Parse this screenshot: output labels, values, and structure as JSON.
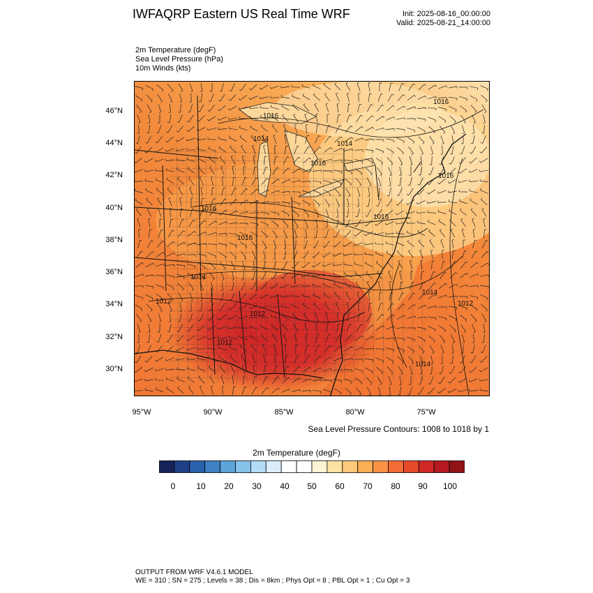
{
  "header": {
    "title": "IWFAQRP Eastern US Real Time WRF",
    "init": "Init: 2025-08-16_00:00:00",
    "valid": "Valid: 2025-08-21_14:00:00"
  },
  "variables": [
    "2m Temperature   (degF)",
    "Sea Level Pressure   (hPa)",
    "10m Winds   (kts)"
  ],
  "map": {
    "lat_labels": [
      "46°N",
      "44°N",
      "42°N",
      "40°N",
      "38°N",
      "36°N",
      "34°N",
      "32°N",
      "30°N"
    ],
    "lon_labels": [
      "95°W",
      "90°W",
      "85°W",
      "80°W",
      "75°W"
    ],
    "pressure_labels": [
      "1016",
      "1016",
      "1014",
      "1014",
      "1016",
      "1016",
      "1016",
      "1016",
      "1016",
      "1014",
      "1014",
      "1012",
      "1012",
      "1012",
      "1012",
      "1014"
    ],
    "colors": {
      "hot": "#d7302a",
      "warm": "#f07634",
      "mild": "#f79d46",
      "cool": "#fcc97a",
      "light": "#fde6b6",
      "lake": "#fcd79a"
    }
  },
  "contour_note": "Sea Level Pressure Contours: 1008 to 1018 by 1",
  "colorbar": {
    "title": "2m Temperature  (degF)",
    "colors": [
      "#162356",
      "#1f3f87",
      "#2a61ad",
      "#3e82c4",
      "#5da4d9",
      "#86c2ea",
      "#b2dbf5",
      "#dbedf9",
      "#ffffff",
      "#ffffff",
      "#fff3d6",
      "#fee3a4",
      "#fdc97a",
      "#fcae55",
      "#f99247",
      "#f26c35",
      "#e54a2b",
      "#cf2827",
      "#b3191f",
      "#8f1317"
    ],
    "labels": [
      "0",
      "10",
      "20",
      "30",
      "40",
      "50",
      "60",
      "70",
      "80",
      "90",
      "100"
    ]
  },
  "footer": {
    "line1": "OUTPUT FROM WRF V4.6.1 MODEL",
    "line2": "WE = 310 ; SN = 275 ; Levels = 38 ; Dis = 8km ; Phys Opt = 8 ; PBL Opt = 1 ; Cu Opt = 3"
  }
}
